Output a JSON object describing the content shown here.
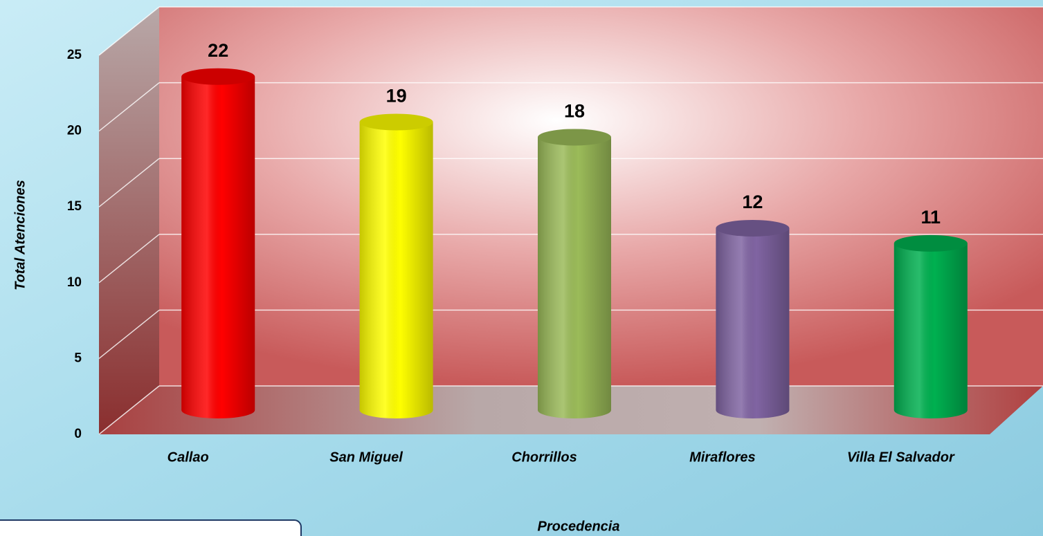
{
  "chart_data": {
    "type": "bar3d",
    "categories": [
      "Callao",
      "San Miguel",
      "Chorrillos",
      "Miraflores",
      "Villa El Salvador"
    ],
    "values": [
      22,
      19,
      18,
      12,
      11
    ],
    "colors": [
      "#ff0000",
      "#ffff00",
      "#9bbb59",
      "#8064a2",
      "#00b050"
    ],
    "ylim": [
      0,
      25
    ],
    "yticks": [
      0,
      5,
      10,
      15,
      20,
      25
    ],
    "grid": true,
    "y_label": "Total Atenciones",
    "x_label": "Procedencia"
  }
}
